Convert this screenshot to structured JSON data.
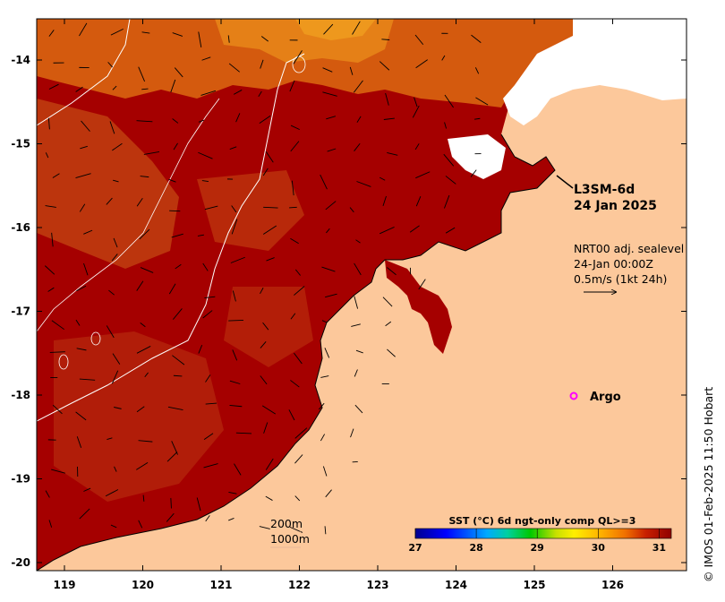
{
  "map": {
    "product": "L3SM-6d",
    "date": "24 Jan 2025",
    "sealevel": {
      "line1": "NRT00 adj. sealevel",
      "line2": "24-Jan 00:00Z",
      "line3": "0.5m/s (1kt 24h)"
    },
    "argo_label": "Argo",
    "isobath_labels": [
      "200m",
      "1000m"
    ],
    "lon_ticks": [
      "119",
      "120",
      "121",
      "122",
      "123",
      "124",
      "125",
      "126"
    ],
    "lat_ticks": [
      "-14",
      "-15",
      "-16",
      "-17",
      "-18",
      "-19",
      "-20"
    ],
    "credit": "© IMOS 01-Feb-2025 11:50 Hobart"
  },
  "colorbar": {
    "title": "SST (°C) 6d ngt-only comp QL>=3",
    "ticks": [
      "27",
      "28",
      "29",
      "30",
      "31"
    ],
    "min": 27,
    "max": 31.2
  },
  "colors": {
    "land": "#fcc89b",
    "sea_warm": "#a50000",
    "argo_marker": "#ff00ff"
  }
}
